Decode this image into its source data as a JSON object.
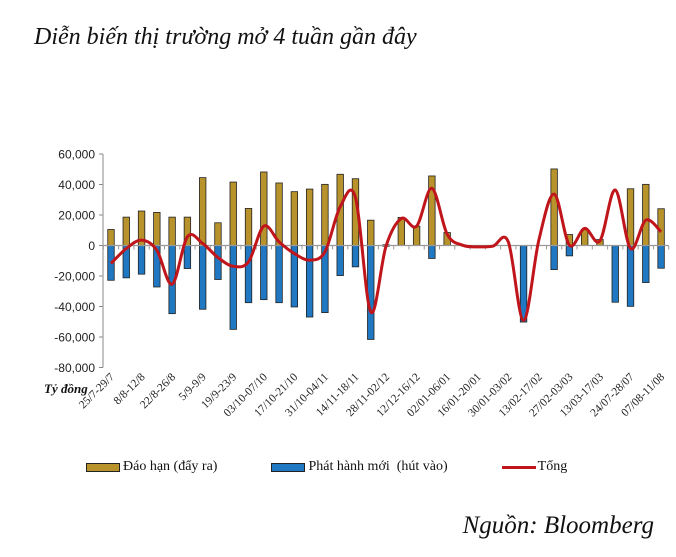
{
  "title": "Diễn biến thị trường mở 4 tuần gần đây",
  "source": "Nguồn: Bloomberg",
  "chart_data": {
    "type": "bar",
    "title": "Diễn biến thị trường mở 4 tuần gần đây",
    "ylabel": "Tỷ đồng",
    "xlabel": "",
    "ylim": [
      -80000,
      60000
    ],
    "yticks": [
      60000,
      40000,
      20000,
      0,
      -20000,
      -40000,
      -60000,
      -80000
    ],
    "ytick_labels": [
      "60,000",
      "40,000",
      "20,000",
      "0",
      "-20,000",
      "-40,000",
      "-60,000",
      "-80,000"
    ],
    "grid": false,
    "legend_position": "bottom",
    "categories": [
      "25/7-29/7",
      "",
      "8/8-12/8",
      "",
      "22/8-26/8",
      "",
      "5/9-9/9",
      "",
      "19/9-23/9",
      "",
      "03/10-07/10",
      "",
      "17/10-21/10",
      "",
      "31/10-04/11",
      "",
      "14/11-18/11",
      "",
      "28/11-02/12",
      "",
      "12/12-16/12",
      "",
      "02/01-06/01",
      "",
      "16/01-20/01",
      "",
      "30/01-03/02",
      "",
      "13/02-17/02",
      "",
      "27/02-03/03",
      "",
      "13/03-17/03",
      "",
      "24/07-28/07",
      "",
      "07/08-11/08"
    ],
    "series": [
      {
        "name": "Đáo hạn (đẩy ra)",
        "kind": "bar",
        "color": "#B8922A",
        "values": [
          10500,
          18600,
          22600,
          21700,
          18600,
          18600,
          44500,
          14900,
          41600,
          24300,
          48200,
          41000,
          35300,
          37000,
          40100,
          46700,
          43800,
          16600,
          500,
          18400,
          12700,
          45600,
          8500,
          0,
          0,
          0,
          0,
          0,
          0,
          50200,
          7200,
          10500,
          3900,
          0,
          37200,
          40100,
          24100
        ]
      },
      {
        "name": "Phát hành mới  (hút vào)",
        "kind": "bar",
        "color": "#1F78C1",
        "values": [
          -22800,
          -21200,
          -18800,
          -27200,
          -44700,
          -15100,
          -41800,
          -22300,
          -55000,
          -37500,
          -35500,
          -37500,
          -40300,
          -46900,
          -44000,
          -19700,
          -14000,
          -61600,
          -500,
          0,
          0,
          -8500,
          0,
          0,
          0,
          0,
          0,
          -50200,
          0,
          -15800,
          -6800,
          0,
          0,
          -37200,
          -39900,
          -24300,
          -14900
        ]
      },
      {
        "name": "Tổng",
        "kind": "line",
        "color": "#C0151B",
        "values": [
          -11800,
          -2000,
          3500,
          -3100,
          -25400,
          5700,
          1300,
          -7900,
          -13600,
          -10700,
          12700,
          2400,
          -5300,
          -9600,
          -4200,
          25400,
          31500,
          -43600,
          -400,
          17700,
          12700,
          37500,
          7400,
          200,
          -900,
          -400,
          2400,
          -49100,
          3500,
          33700,
          200,
          11200,
          3100,
          36400,
          -2000,
          16600,
          9000
        ]
      }
    ]
  }
}
